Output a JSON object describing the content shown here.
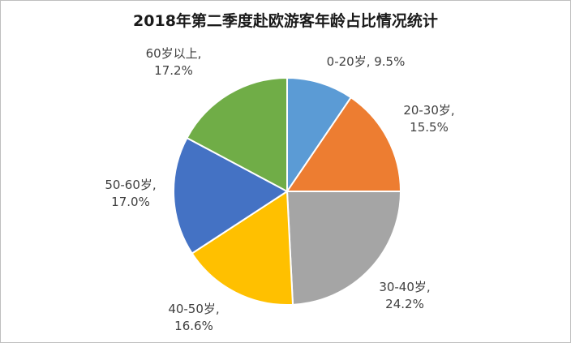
{
  "chart_data": {
    "type": "pie",
    "title": "2018年第二季度赴欧游客年龄占比情况统计",
    "legend": "none",
    "slices": [
      {
        "label": "0-20岁",
        "value_text": "9.5%",
        "value": 9.5,
        "color": "#5B9BD5"
      },
      {
        "label": "20-30岁",
        "value_text": "15.5%",
        "value": 15.5,
        "color": "#ED7D31"
      },
      {
        "label": "30-40岁",
        "value_text": "24.2%",
        "value": 24.2,
        "color": "#A5A5A5"
      },
      {
        "label": "40-50岁",
        "value_text": "16.6%",
        "value": 16.6,
        "color": "#FFC000"
      },
      {
        "label": "50-60岁",
        "value_text": "17.0%",
        "value": 17.0,
        "color": "#4472C4"
      },
      {
        "label": "60岁以上",
        "value_text": "17.2%",
        "value": 17.2,
        "color": "#70AD47"
      }
    ]
  }
}
